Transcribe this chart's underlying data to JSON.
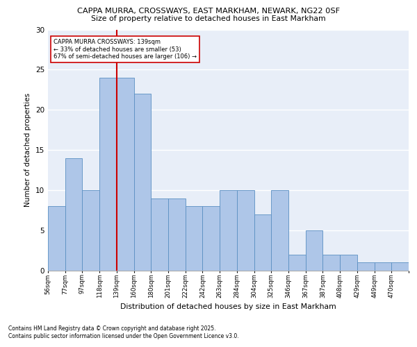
{
  "title1": "CAPPA MURRA, CROSSWAYS, EAST MARKHAM, NEWARK, NG22 0SF",
  "title2": "Size of property relative to detached houses in East Markham",
  "xlabel": "Distribution of detached houses by size in East Markham",
  "ylabel": "Number of detached properties",
  "bar_values": [
    8,
    14,
    10,
    24,
    24,
    22,
    9,
    9,
    8,
    8,
    10,
    10,
    7,
    10,
    2,
    5,
    2,
    2,
    1,
    1,
    1
  ],
  "bin_labels": [
    "56sqm",
    "77sqm",
    "97sqm",
    "118sqm",
    "139sqm",
    "160sqm",
    "180sqm",
    "201sqm",
    "222sqm",
    "242sqm",
    "263sqm",
    "284sqm",
    "304sqm",
    "325sqm",
    "346sqm",
    "367sqm",
    "387sqm",
    "408sqm",
    "429sqm",
    "449sqm",
    "470sqm"
  ],
  "bar_color": "#aec6e8",
  "bar_edge_color": "#5a8fc2",
  "bg_color": "#e8eef8",
  "grid_color": "#ffffff",
  "vline_x_index": 4,
  "vline_color": "#cc0000",
  "annotation_title": "CAPPA MURRA CROSSWAYS: 139sqm",
  "annotation_line1": "← 33% of detached houses are smaller (53)",
  "annotation_line2": "67% of semi-detached houses are larger (106) →",
  "annotation_box_color": "#ffffff",
  "annotation_box_edge": "#cc0000",
  "footnote1": "Contains HM Land Registry data © Crown copyright and database right 2025.",
  "footnote2": "Contains public sector information licensed under the Open Government Licence v3.0.",
  "ylim": [
    0,
    30
  ],
  "yticks": [
    0,
    5,
    10,
    15,
    20,
    25,
    30
  ]
}
